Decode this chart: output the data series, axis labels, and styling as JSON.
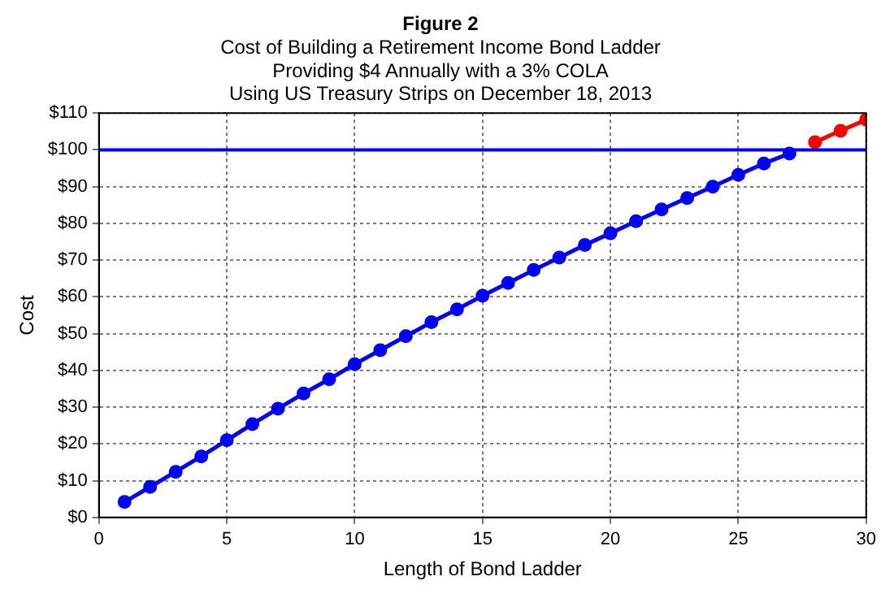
{
  "chart_data": {
    "type": "line",
    "title": "Figure 2",
    "subtitle": "Cost of Building a Retirement Income Bond Ladder\nProviding $4 Annually with a 3% COLA\nUsing US Treasury Strips on December 18, 2013",
    "xlabel": "Length of Bond Ladder",
    "ylabel": "Cost",
    "series": [
      {
        "color": "#0000ff",
        "x": [
          1,
          2,
          3,
          4,
          5,
          6,
          7,
          8,
          9,
          10,
          11,
          12,
          13,
          14,
          15,
          16,
          17,
          18,
          19,
          20,
          21,
          22,
          23,
          24,
          25,
          26,
          27
        ],
        "values": [
          4.2,
          8.3,
          12.4,
          16.6,
          21.0,
          25.4,
          29.6,
          33.7,
          37.6,
          41.7,
          45.5,
          49.3,
          53.1,
          56.6,
          60.3,
          63.8,
          67.3,
          70.7,
          74.1,
          77.3,
          80.6,
          83.8,
          86.9,
          90.0,
          93.2,
          96.3,
          99.0
        ]
      },
      {
        "color": "#ff0000",
        "x": [
          28,
          29,
          30
        ],
        "values": [
          102.1,
          105.2,
          108.2
        ]
      }
    ],
    "xlim": [
      0,
      30
    ],
    "xticks": [
      0,
      5,
      10,
      15,
      20,
      25,
      30
    ],
    "ylim": [
      0,
      110
    ],
    "yticks": [
      {
        "value": 0,
        "label": "$0"
      },
      {
        "value": 10,
        "label": "$10"
      },
      {
        "value": 20,
        "label": "$20"
      },
      {
        "value": 30,
        "label": "$30"
      },
      {
        "value": 40,
        "label": "$40"
      },
      {
        "value": 50,
        "label": "$50"
      },
      {
        "value": 60,
        "label": "$60"
      },
      {
        "value": 70,
        "label": "$70"
      },
      {
        "value": 80,
        "label": "$80"
      },
      {
        "value": 90,
        "label": "$90"
      },
      {
        "value": 100,
        "label": "$100"
      },
      {
        "value": 110,
        "label": "$110"
      }
    ],
    "ref_lines": [
      {
        "axis": "y",
        "value": 100,
        "color": "#0000ff"
      }
    ],
    "grid": true,
    "legend": false,
    "marker": "circle",
    "line_style": "solid"
  }
}
